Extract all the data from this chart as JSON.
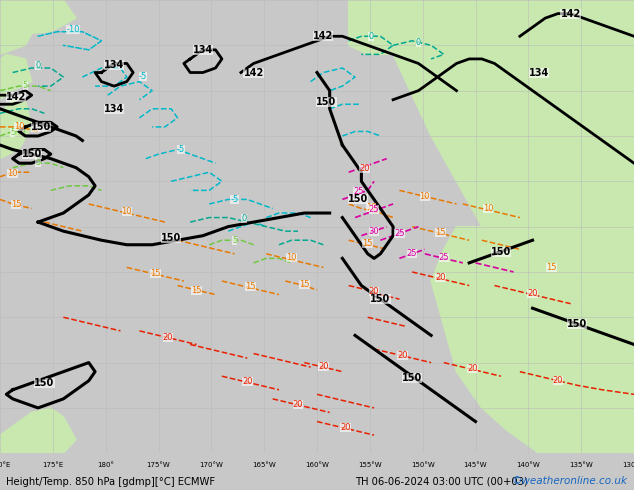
{
  "title_bottom": "Height/Temp. 850 hPa [gdmp][°C] ECMWF",
  "datetime_str": "TH 06-06-2024 03:00 UTC (00+03)",
  "credit": "©weatheronline.co.uk",
  "credit_color": "#1565c0",
  "sea_color": "#d0d0d0",
  "land_color_light": "#c8e8b0",
  "land_color_dark": "#a8cc90",
  "grid_color": "#b8b8b8",
  "black_contour_color": "#000000",
  "cyan_color": "#00b8c8",
  "green_color": "#70c840",
  "teal_color": "#00a890",
  "orange_color": "#e87800",
  "red_color": "#e82000",
  "magenta_color": "#d800a0"
}
